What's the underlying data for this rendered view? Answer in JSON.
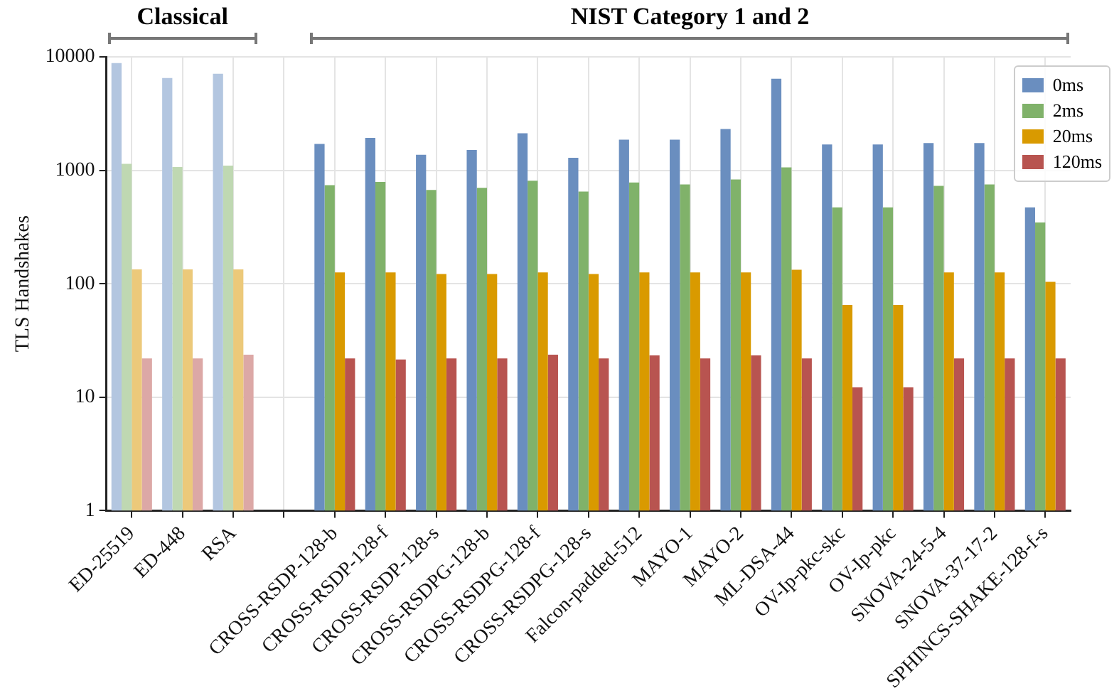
{
  "chart_data": {
    "type": "bar",
    "ylabel": "TLS Handshakes",
    "log": true,
    "ylim": [
      1,
      10000
    ],
    "yticks": [
      1,
      10,
      100,
      1000,
      10000
    ],
    "grid": true,
    "legend": "top right",
    "annotations": [
      "Classical",
      "NIST Category 1 and 2"
    ],
    "categories": [
      "ED-25519",
      "ED-448",
      "RSA",
      null,
      "CROSS-RSDP-128-b",
      "CROSS-RSDP-128-f",
      "CROSS-RSDP-128-s",
      "CROSS-RSDPG-128-b",
      "CROSS-RSDPG-128-f",
      "CROSS-RSDPG-128-s",
      "Falcon-padded-512",
      "MAYO-1",
      "MAYO-2",
      "ML-DSA-44",
      "OV-Ip-pkc-skc",
      "OV-Ip-pkc",
      "SNOVA-24-5-4",
      "SNOVA-37-17-2",
      "SPHINCS-SHAKE-128-f-s"
    ],
    "series": [
      {
        "name": "0ms",
        "color": "#6a8ebf",
        "colors": [
          "#b3c6e0",
          "#b3c6e0",
          "#b3c6e0",
          "#6a8ebf",
          "#6a8ebf",
          "#6a8ebf",
          "#6a8ebf",
          "#6a8ebf",
          "#6a8ebf",
          "#6a8ebf",
          "#6a8ebf",
          "#6a8ebf",
          "#6a8ebf",
          "#6a8ebf",
          "#6a8ebf",
          "#6a8ebf",
          "#6a8ebf",
          "#6a8ebf",
          "#6a8ebf"
        ],
        "values": [
          8800,
          6500,
          7100,
          null,
          1710,
          1930,
          1370,
          1510,
          2120,
          1290,
          1860,
          1860,
          2310,
          6420,
          1690,
          1690,
          1740,
          1740,
          472
        ]
      },
      {
        "name": "2ms",
        "color": "#80b26a",
        "colors": [
          "#bfd8b2",
          "#bfd8b2",
          "#bfd8b2",
          "#80b26a",
          "#80b26a",
          "#80b26a",
          "#80b26a",
          "#80b26a",
          "#80b26a",
          "#80b26a",
          "#80b26a",
          "#80b26a",
          "#80b26a",
          "#80b26a",
          "#80b26a",
          "#80b26a",
          "#80b26a",
          "#80b26a",
          "#80b26a"
        ],
        "values": [
          1140,
          1070,
          1100,
          null,
          740,
          790,
          670,
          700,
          810,
          650,
          780,
          750,
          830,
          1060,
          472,
          472,
          730,
          750,
          347
        ]
      },
      {
        "name": "20ms",
        "color": "#d99a00",
        "colors": [
          "#ecc97a",
          "#ecc97a",
          "#ecc97a",
          "#d99a00",
          "#d99a00",
          "#d99a00",
          "#d99a00",
          "#d99a00",
          "#d99a00",
          "#d99a00",
          "#d99a00",
          "#d99a00",
          "#d99a00",
          "#d99a00",
          "#d99a00",
          "#d99a00",
          "#d99a00",
          "#d99a00",
          "#d99a00"
        ],
        "values": [
          134,
          134,
          134,
          null,
          126,
          126,
          122,
          122,
          126,
          122,
          126,
          126,
          126,
          133,
          65,
          65,
          126,
          126,
          104
        ]
      },
      {
        "name": "120ms",
        "color": "#b85450",
        "colors": [
          "#dca8a6",
          "#dca8a6",
          "#dca8a6",
          "#b85450",
          "#b85450",
          "#b85450",
          "#b85450",
          "#b85450",
          "#b85450",
          "#b85450",
          "#b85450",
          "#b85450",
          "#b85450",
          "#b85450",
          "#b85450",
          "#b85450",
          "#b85450",
          "#b85450",
          "#b85450"
        ],
        "values": [
          22,
          22,
          23.7,
          null,
          22,
          21.5,
          22,
          22,
          23.7,
          22,
          23.4,
          22,
          23.4,
          22,
          12.2,
          12.2,
          22,
          22,
          22
        ]
      }
    ]
  }
}
